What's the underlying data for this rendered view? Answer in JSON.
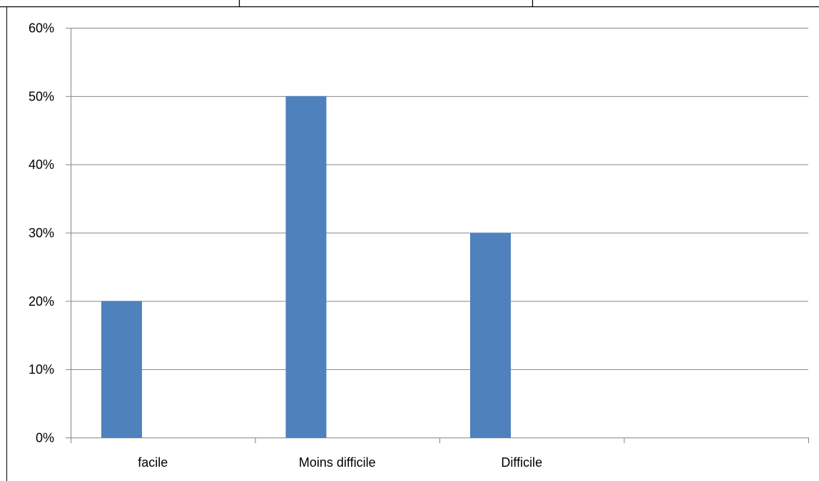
{
  "chart_data": {
    "type": "bar",
    "categories": [
      "facile",
      "Moins difficile",
      "Difficile",
      ""
    ],
    "series": [
      {
        "values": [
          20,
          50,
          30,
          null
        ],
        "color": "#4F81BD"
      }
    ],
    "y_ticks": [
      "0%",
      "10%",
      "20%",
      "30%",
      "40%",
      "50%",
      "60%"
    ],
    "ylim": [
      0,
      60
    ],
    "title": "",
    "xlabel": "",
    "ylabel": "",
    "grid": true,
    "legend": "none",
    "gridline_color": "#868686"
  }
}
